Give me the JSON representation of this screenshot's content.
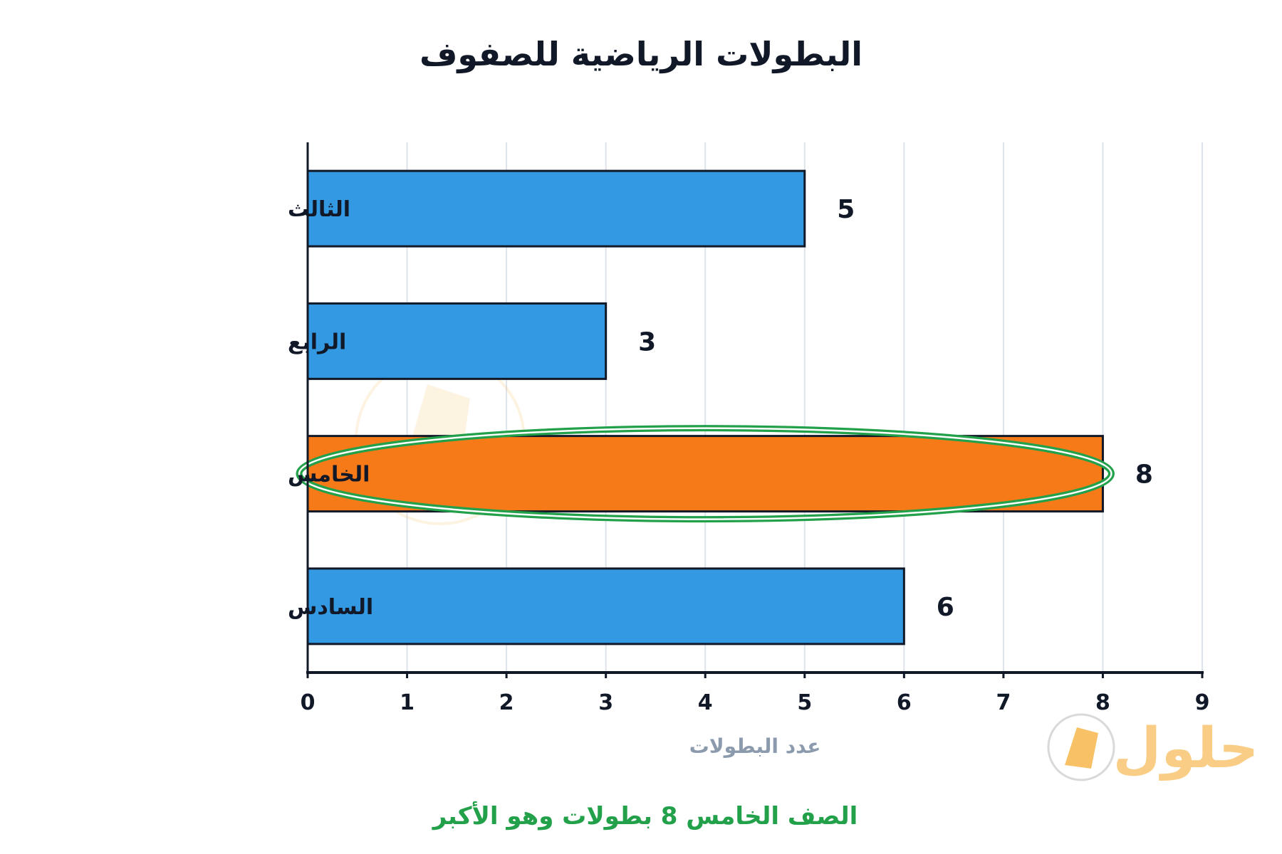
{
  "chart_data": {
    "type": "bar",
    "orientation": "horizontal",
    "title": "البطولات الرياضية للصفوف",
    "categories": [
      "الثالث",
      "الرابع",
      "الخامس",
      "السادس"
    ],
    "values": [
      5,
      3,
      8,
      6
    ],
    "xlabel": "عدد البطولات",
    "ylabel": "",
    "xlim": [
      0,
      9
    ],
    "xticks": [
      "0",
      "1",
      "2",
      "3",
      "4",
      "5",
      "6",
      "7",
      "8",
      "9"
    ],
    "grid": "vertical",
    "highlight_category": "الخامس",
    "annotation": "الصف الخامس 8 بطولات وهو الأكبر"
  },
  "colors": {
    "bar": "#3399e3",
    "highlight_bar": "#f77a19",
    "highlight_ring": "#22a04a",
    "axis": "#111827",
    "grid": "#dde3ea",
    "xlabel": "#8c9aad",
    "annotation": "#22a04a",
    "watermark": "#f5a623"
  },
  "watermark": {
    "text": "حلول",
    "icon": "book-icon"
  }
}
